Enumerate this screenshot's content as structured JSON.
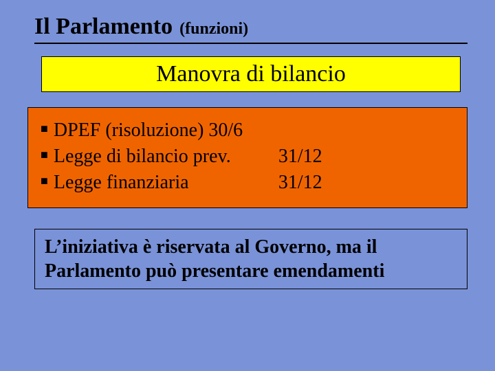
{
  "colors": {
    "background": "#7a92d8",
    "yellow": "#ffff00",
    "orange": "#f06400",
    "border": "#000000",
    "text": "#000000"
  },
  "typography": {
    "family": "Times New Roman",
    "title_main_pt": 34,
    "title_sub_pt": 24,
    "heading_pt": 34,
    "body_pt": 28,
    "note_pt": 28
  },
  "title": {
    "main": "Il Parlamento",
    "sub": "(funzioni)"
  },
  "heading": "Manovra di bilancio",
  "items": [
    {
      "label": "DPEF (risoluzione)",
      "date": "30/6"
    },
    {
      "label": "Legge di bilancio prev.",
      "date": "31/12"
    },
    {
      "label": "Legge finanziaria",
      "date": "31/12"
    }
  ],
  "note": "L’iniziativa è riservata al Governo, ma il Parlamento può presentare emendamenti",
  "bullet_glyph": "■"
}
